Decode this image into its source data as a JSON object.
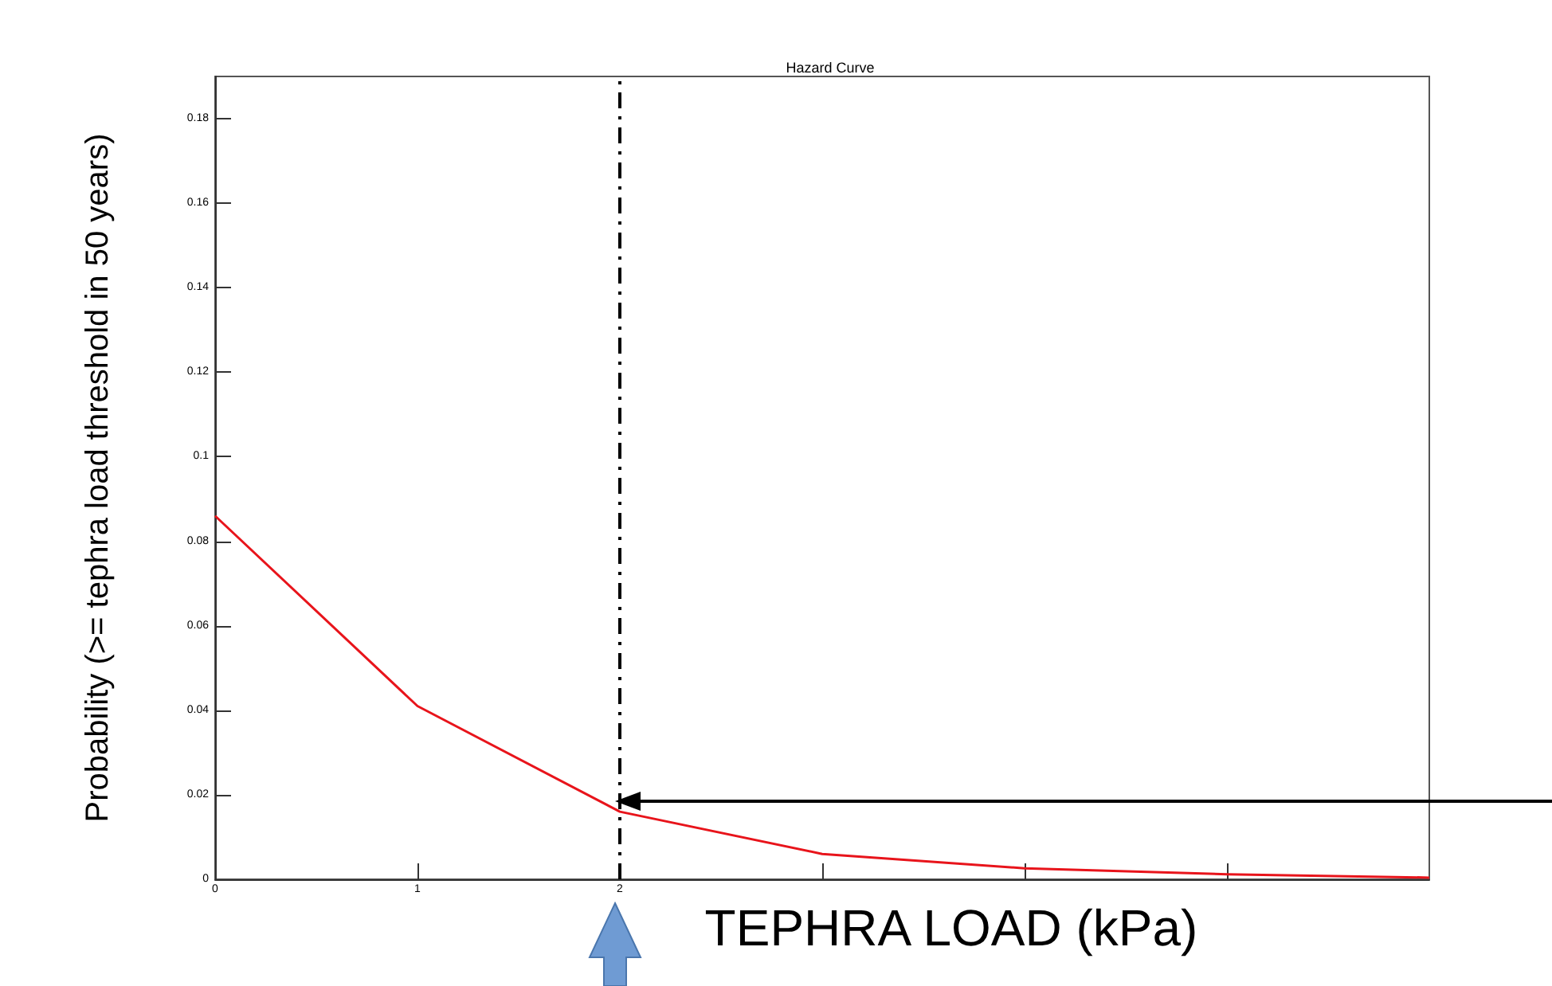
{
  "chart_data": {
    "type": "line",
    "title": "Hazard Curve",
    "xlabel": "TEPHRA LOAD (kPa)",
    "ylabel": "Probability (>= tephra load threshold in 50 years)",
    "x": [
      0,
      1,
      2,
      3,
      4,
      5,
      6
    ],
    "series": [
      {
        "color": "#e8141b",
        "values": [
          0.086,
          0.041,
          0.016,
          0.006,
          0.0026,
          0.0012,
          0.0004
        ]
      }
    ],
    "xlim": [
      0,
      6
    ],
    "xticks": [
      0,
      1,
      2,
      {
        "value": 3,
        "label": null
      },
      {
        "value": 4,
        "label": null
      },
      {
        "value": 5,
        "label": null
      }
    ],
    "ylim": [
      0,
      0.19
    ],
    "yticks": [
      0,
      0.02,
      0.04,
      0.06,
      0.08,
      0.1,
      0.12,
      0.14,
      0.16,
      0.18
    ],
    "ref_lines": [
      {
        "axis": "x",
        "value": 2,
        "color": "#000000",
        "line_style": "dashed"
      }
    ],
    "marker": "none",
    "line_style": "solid"
  }
}
